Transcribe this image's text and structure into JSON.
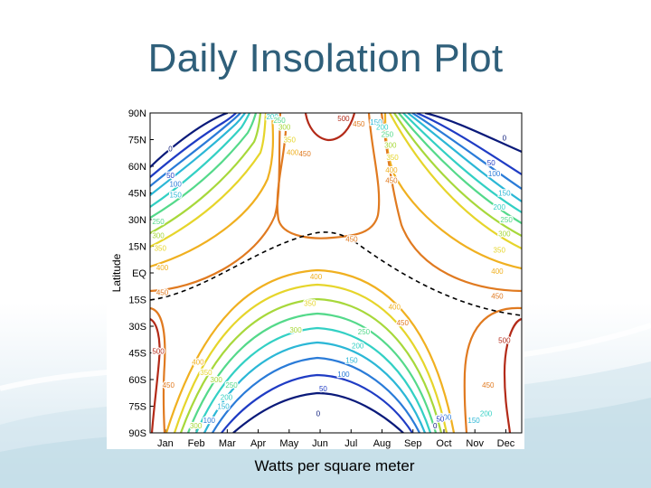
{
  "slide": {
    "title": "Daily Insolation Plot",
    "caption": "Watts per square meter"
  },
  "chart_data": {
    "type": "contour",
    "ylabel": "Latitude",
    "xlabel": "",
    "x_ticks": [
      "Jan",
      "Feb",
      "Mar",
      "Apr",
      "May",
      "Jun",
      "Jul",
      "Aug",
      "Sep",
      "Oct",
      "Nov",
      "Dec"
    ],
    "y_ticks": [
      "90N",
      "75N",
      "60N",
      "45N",
      "30N",
      "15N",
      "EQ",
      "15S",
      "30S",
      "45S",
      "60S",
      "75S",
      "90S"
    ],
    "xlim": [
      0,
      365
    ],
    "ylim": [
      -90,
      90
    ],
    "units": "W/m^2",
    "contour_levels": [
      0,
      50,
      100,
      150,
      200,
      250,
      300,
      350,
      400,
      450,
      500
    ],
    "level_colors": {
      "0": "#0a1a7a",
      "50": "#1f3cc4",
      "100": "#2a7bd8",
      "150": "#2bb7d6",
      "200": "#33d0c4",
      "250": "#54d98a",
      "300": "#a7d83b",
      "350": "#e6d52b",
      "400": "#f0b020",
      "450": "#e07a20",
      "500": "#b32a18"
    },
    "contour_labels": [
      {
        "level": "0",
        "x": 20,
        "y": 70,
        "color": "#0a1a7a"
      },
      {
        "level": "50",
        "x": 20,
        "y": 55,
        "color": "#1f3cc4"
      },
      {
        "level": "100",
        "x": 25,
        "y": 50,
        "color": "#2a7bd8"
      },
      {
        "level": "150",
        "x": 25,
        "y": 44,
        "color": "#2bb7d6"
      },
      {
        "level": "250",
        "x": 8,
        "y": 29,
        "color": "#54d98a"
      },
      {
        "level": "300",
        "x": 8,
        "y": 21,
        "color": "#a7d83b"
      },
      {
        "level": "350",
        "x": 10,
        "y": 14,
        "color": "#e6d52b"
      },
      {
        "level": "400",
        "x": 12,
        "y": 3,
        "color": "#f0b020"
      },
      {
        "level": "450",
        "x": 12,
        "y": -11,
        "color": "#e07a20"
      },
      {
        "level": "200",
        "x": 120,
        "y": 88,
        "color": "#33d0c4"
      },
      {
        "level": "250",
        "x": 127,
        "y": 86,
        "color": "#54d98a"
      },
      {
        "level": "300",
        "x": 132,
        "y": 82,
        "color": "#a7d83b"
      },
      {
        "level": "350",
        "x": 137,
        "y": 75,
        "color": "#e6d52b"
      },
      {
        "level": "400",
        "x": 140,
        "y": 68,
        "color": "#f0b020"
      },
      {
        "level": "450",
        "x": 152,
        "y": 67,
        "color": "#e07a20"
      },
      {
        "level": "500",
        "x": 190,
        "y": 87,
        "color": "#b32a18"
      },
      {
        "level": "450",
        "x": 205,
        "y": 84,
        "color": "#e07a20"
      },
      {
        "level": "150",
        "x": 222,
        "y": 85,
        "color": "#2bb7d6"
      },
      {
        "level": "200",
        "x": 228,
        "y": 82,
        "color": "#33d0c4"
      },
      {
        "level": "250",
        "x": 233,
        "y": 78,
        "color": "#54d98a"
      },
      {
        "level": "300",
        "x": 236,
        "y": 72,
        "color": "#a7d83b"
      },
      {
        "level": "350",
        "x": 238,
        "y": 65,
        "color": "#e6d52b"
      },
      {
        "level": "400",
        "x": 237,
        "y": 58,
        "color": "#f0b020"
      },
      {
        "level": "450",
        "x": 237,
        "y": 52,
        "color": "#e07a20"
      },
      {
        "level": "450",
        "x": 198,
        "y": 19,
        "color": "#e07a20"
      },
      {
        "level": "0",
        "x": 348,
        "y": 76,
        "color": "#0a1a7a"
      },
      {
        "level": "50",
        "x": 335,
        "y": 62,
        "color": "#1f3cc4"
      },
      {
        "level": "100",
        "x": 338,
        "y": 56,
        "color": "#2a7bd8"
      },
      {
        "level": "150",
        "x": 348,
        "y": 45,
        "color": "#2bb7d6"
      },
      {
        "level": "200",
        "x": 343,
        "y": 37,
        "color": "#33d0c4"
      },
      {
        "level": "250",
        "x": 350,
        "y": 30,
        "color": "#54d98a"
      },
      {
        "level": "300",
        "x": 348,
        "y": 22,
        "color": "#a7d83b"
      },
      {
        "level": "350",
        "x": 343,
        "y": 13,
        "color": "#e6d52b"
      },
      {
        "level": "400",
        "x": 341,
        "y": 1,
        "color": "#f0b020"
      },
      {
        "level": "450",
        "x": 341,
        "y": -13,
        "color": "#e07a20"
      },
      {
        "level": "400",
        "x": 163,
        "y": -2,
        "color": "#f0b020"
      },
      {
        "level": "350",
        "x": 157,
        "y": -17,
        "color": "#e6d52b"
      },
      {
        "level": "300",
        "x": 143,
        "y": -32,
        "color": "#a7d83b"
      },
      {
        "level": "250",
        "x": 210,
        "y": -33,
        "color": "#54d98a"
      },
      {
        "level": "200",
        "x": 204,
        "y": -41,
        "color": "#33d0c4"
      },
      {
        "level": "150",
        "x": 198,
        "y": -49,
        "color": "#2bb7d6"
      },
      {
        "level": "100",
        "x": 190,
        "y": -57,
        "color": "#2a7bd8"
      },
      {
        "level": "50",
        "x": 170,
        "y": -65,
        "color": "#1f3cc4"
      },
      {
        "level": "0",
        "x": 165,
        "y": -79,
        "color": "#0a1a7a"
      },
      {
        "level": "400",
        "x": 240,
        "y": -19,
        "color": "#f0b020"
      },
      {
        "level": "450",
        "x": 248,
        "y": -28,
        "color": "#e07a20"
      },
      {
        "level": "500",
        "x": 8,
        "y": -44,
        "color": "#b32a18"
      },
      {
        "level": "450",
        "x": 18,
        "y": -63,
        "color": "#e07a20"
      },
      {
        "level": "400",
        "x": 47,
        "y": -50,
        "color": "#f0b020"
      },
      {
        "level": "350",
        "x": 55,
        "y": -56,
        "color": "#e6d52b"
      },
      {
        "level": "300",
        "x": 65,
        "y": -60,
        "color": "#a7d83b"
      },
      {
        "level": "250",
        "x": 80,
        "y": -63,
        "color": "#54d98a"
      },
      {
        "level": "200",
        "x": 75,
        "y": -70,
        "color": "#33d0c4"
      },
      {
        "level": "150",
        "x": 72,
        "y": -75,
        "color": "#2bb7d6"
      },
      {
        "level": "100",
        "x": 58,
        "y": -83,
        "color": "#2a7bd8"
      },
      {
        "level": "300",
        "x": 45,
        "y": -86,
        "color": "#a7d83b"
      },
      {
        "level": "500",
        "x": 348,
        "y": -38,
        "color": "#b32a18"
      },
      {
        "level": "450",
        "x": 332,
        "y": -63,
        "color": "#e07a20"
      },
      {
        "level": "200",
        "x": 330,
        "y": -79,
        "color": "#33d0c4"
      },
      {
        "level": "150",
        "x": 318,
        "y": -83,
        "color": "#2bb7d6"
      },
      {
        "level": "100",
        "x": 290,
        "y": -81,
        "color": "#2a7bd8"
      },
      {
        "level": "50",
        "x": 285,
        "y": -82,
        "color": "#1f3cc4"
      },
      {
        "level": "0",
        "x": 280,
        "y": -86,
        "color": "#0a1a7a"
      }
    ]
  }
}
